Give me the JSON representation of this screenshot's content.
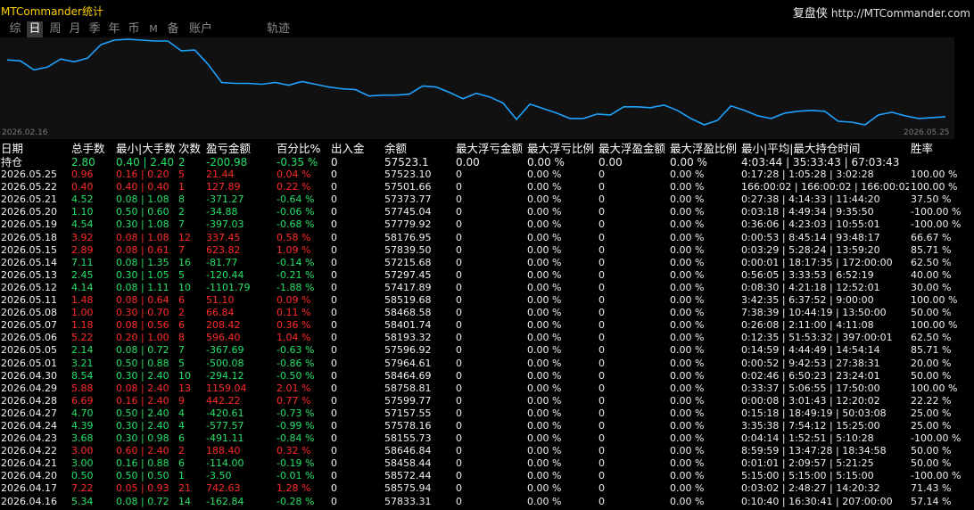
{
  "title": "MTCommander统计",
  "brand": {
    "name": "复盘侠",
    "url": "http://MTCommander.com"
  },
  "tabs": [
    {
      "label": "综",
      "active": false
    },
    {
      "label": "日",
      "active": true
    },
    {
      "label": "周",
      "active": false
    },
    {
      "label": "月",
      "active": false
    },
    {
      "label": "季",
      "active": false
    },
    {
      "label": "年",
      "active": false
    },
    {
      "label": "币",
      "active": false
    },
    {
      "label": "M",
      "active": false
    },
    {
      "label": "备",
      "active": false
    },
    {
      "label": "账户",
      "active": false
    },
    {
      "label": "轨迹",
      "active": false
    }
  ],
  "colors": {
    "chart_line": "#1ea2ff",
    "chart_bg": "#111111",
    "positive": "#27e06a",
    "negative": "#ff2a2a",
    "title": "#ffd200"
  },
  "chart_data": {
    "type": "line",
    "x_start": "2026.02.16",
    "x_end": "2026.05.25",
    "values": [
      58090,
      58080,
      57980,
      58010,
      58100,
      58070,
      58110,
      58260,
      58310,
      58320,
      58310,
      58300,
      58300,
      58190,
      58200,
      58040,
      57840,
      57830,
      57830,
      57820,
      57840,
      57810,
      57850,
      57820,
      57790,
      57770,
      57760,
      57690,
      57700,
      57700,
      57710,
      57800,
      57790,
      57730,
      57660,
      57720,
      57680,
      57610,
      57430,
      57600,
      57550,
      57500,
      57440,
      57440,
      57490,
      57480,
      57570,
      57570,
      57560,
      57590,
      57530,
      57440,
      57370,
      57420,
      57580,
      57530,
      57470,
      57440,
      57500,
      57520,
      57530,
      57520,
      57410,
      57400,
      57370,
      57480,
      57510,
      57470,
      57440,
      57450,
      57460
    ]
  },
  "table": {
    "headers": [
      "日期",
      "总手数",
      "最小|大手数",
      "次数",
      "盈亏金额",
      "百分比%",
      "出入金",
      "余额",
      "最大浮亏金额",
      "最大浮亏比例",
      "最大浮盈金额",
      "最大浮盈比例",
      "最小|平均|最大持仓时间",
      "胜率"
    ],
    "holding": {
      "label": "持仓",
      "lots": "2.80",
      "minmax": "0.40 | 2.40",
      "count": "2",
      "pnl": "-200.98",
      "pct": "-0.35 %",
      "io": "0",
      "balance": "57523.1",
      "mfl_amt": "0.00",
      "mfl_pct": "0.00 %",
      "mfp_amt": "0.00",
      "mfp_pct": "0.00 %",
      "hold": "4:03:44 | 35:33:43 | 67:03:43",
      "win": ""
    },
    "rows": [
      {
        "d": "2026.05.25",
        "l": "0.96",
        "m": "0.16 | 0.20",
        "n": "5",
        "p": "21.44",
        "pc": "0.04 %",
        "io": "0",
        "b": "57523.10",
        "a1": "0",
        "a2": "0.00 %",
        "a3": "0",
        "a4": "0.00 %",
        "h": "0:17:28 | 1:05:28 | 3:02:28",
        "w": "100.00 %"
      },
      {
        "d": "2026.05.22",
        "l": "0.40",
        "m": "0.40 | 0.40",
        "n": "1",
        "p": "127.89",
        "pc": "0.22 %",
        "io": "0",
        "b": "57501.66",
        "a1": "0",
        "a2": "0.00 %",
        "a3": "0",
        "a4": "0.00 %",
        "h": "166:00:02 | 166:00:02 | 166:00:02",
        "w": "100.00 %"
      },
      {
        "d": "2026.05.21",
        "l": "4.52",
        "m": "0.08 | 1.08",
        "n": "8",
        "p": "-371.27",
        "pc": "-0.64 %",
        "io": "0",
        "b": "57373.77",
        "a1": "0",
        "a2": "0.00 %",
        "a3": "0",
        "a4": "0.00 %",
        "h": "0:27:38 | 4:14:33 | 11:44:20",
        "w": "37.50 %"
      },
      {
        "d": "2026.05.20",
        "l": "1.10",
        "m": "0.50 | 0.60",
        "n": "2",
        "p": "-34.88",
        "pc": "-0.06 %",
        "io": "0",
        "b": "57745.04",
        "a1": "0",
        "a2": "0.00 %",
        "a3": "0",
        "a4": "0.00 %",
        "h": "0:03:18 | 4:49:34 | 9:35:50",
        "w": "-100.00 %"
      },
      {
        "d": "2026.05.19",
        "l": "4.54",
        "m": "0.30 | 1.08",
        "n": "7",
        "p": "-397.03",
        "pc": "-0.68 %",
        "io": "0",
        "b": "57779.92",
        "a1": "0",
        "a2": "0.00 %",
        "a3": "0",
        "a4": "0.00 %",
        "h": "0:36:06 | 4:23:03 | 10:55:01",
        "w": "-100.00 %"
      },
      {
        "d": "2026.05.18",
        "l": "3.92",
        "m": "0.08 | 1.08",
        "n": "12",
        "p": "337.45",
        "pc": "0.58 %",
        "io": "0",
        "b": "58176.95",
        "a1": "0",
        "a2": "0.00 %",
        "a3": "0",
        "a4": "0.00 %",
        "h": "0:00:53 | 8:45:14 | 93:48:17",
        "w": "66.67 %"
      },
      {
        "d": "2026.05.15",
        "l": "2.89",
        "m": "0.08 | 0.61",
        "n": "7",
        "p": "623.82",
        "pc": "1.09 %",
        "io": "0",
        "b": "57839.50",
        "a1": "0",
        "a2": "0.00 %",
        "a3": "0",
        "a4": "0.00 %",
        "h": "0:03:29 | 5:28:24 | 13:59:20",
        "w": "85.71 %"
      },
      {
        "d": "2026.05.14",
        "l": "7.11",
        "m": "0.08 | 1.35",
        "n": "16",
        "p": "-81.77",
        "pc": "-0.14 %",
        "io": "0",
        "b": "57215.68",
        "a1": "0",
        "a2": "0.00 %",
        "a3": "0",
        "a4": "0.00 %",
        "h": "0:00:01 | 18:17:35 | 172:00:00",
        "w": "62.50 %"
      },
      {
        "d": "2026.05.13",
        "l": "2.45",
        "m": "0.30 | 1.05",
        "n": "5",
        "p": "-120.44",
        "pc": "-0.21 %",
        "io": "0",
        "b": "57297.45",
        "a1": "0",
        "a2": "0.00 %",
        "a3": "0",
        "a4": "0.00 %",
        "h": "0:56:05 | 3:33:53 | 6:52:19",
        "w": "40.00 %"
      },
      {
        "d": "2026.05.12",
        "l": "4.14",
        "m": "0.08 | 1.11",
        "n": "10",
        "p": "-1101.79",
        "pc": "-1.88 %",
        "io": "0",
        "b": "57417.89",
        "a1": "0",
        "a2": "0.00 %",
        "a3": "0",
        "a4": "0.00 %",
        "h": "0:08:30 | 4:21:18 | 12:52:01",
        "w": "30.00 %"
      },
      {
        "d": "2026.05.11",
        "l": "1.48",
        "m": "0.08 | 0.64",
        "n": "6",
        "p": "51.10",
        "pc": "0.09 %",
        "io": "0",
        "b": "58519.68",
        "a1": "0",
        "a2": "0.00 %",
        "a3": "0",
        "a4": "0.00 %",
        "h": "3:42:35 | 6:37:52 | 9:00:00",
        "w": "100.00 %"
      },
      {
        "d": "2026.05.08",
        "l": "1.00",
        "m": "0.30 | 0.70",
        "n": "2",
        "p": "66.84",
        "pc": "0.11 %",
        "io": "0",
        "b": "58468.58",
        "a1": "0",
        "a2": "0.00 %",
        "a3": "0",
        "a4": "0.00 %",
        "h": "7:38:39 | 10:44:19 | 13:50:00",
        "w": "50.00 %"
      },
      {
        "d": "2026.05.07",
        "l": "1.18",
        "m": "0.08 | 0.56",
        "n": "6",
        "p": "208.42",
        "pc": "0.36 %",
        "io": "0",
        "b": "58401.74",
        "a1": "0",
        "a2": "0.00 %",
        "a3": "0",
        "a4": "0.00 %",
        "h": "0:26:08 | 2:11:00 | 4:11:08",
        "w": "100.00 %"
      },
      {
        "d": "2026.05.06",
        "l": "5.22",
        "m": "0.20 | 1.00",
        "n": "8",
        "p": "596.40",
        "pc": "1.04 %",
        "io": "0",
        "b": "58193.32",
        "a1": "0",
        "a2": "0.00 %",
        "a3": "0",
        "a4": "0.00 %",
        "h": "0:12:35 | 51:53:32 | 397:00:01",
        "w": "62.50 %"
      },
      {
        "d": "2026.05.05",
        "l": "2.14",
        "m": "0.08 | 0.72",
        "n": "7",
        "p": "-367.69",
        "pc": "-0.63 %",
        "io": "0",
        "b": "57596.92",
        "a1": "0",
        "a2": "0.00 %",
        "a3": "0",
        "a4": "0.00 %",
        "h": "0:14:59 | 4:44:49 | 14:54:14",
        "w": "85.71 %"
      },
      {
        "d": "2026.05.01",
        "l": "3.21",
        "m": "0.50 | 0.88",
        "n": "5",
        "p": "-500.08",
        "pc": "-0.86 %",
        "io": "0",
        "b": "57964.61",
        "a1": "0",
        "a2": "0.00 %",
        "a3": "0",
        "a4": "0.00 %",
        "h": "0:00:52 | 9:42:53 | 27:38:31",
        "w": "20.00 %"
      },
      {
        "d": "2026.04.30",
        "l": "8.54",
        "m": "0.30 | 2.40",
        "n": "10",
        "p": "-294.12",
        "pc": "-0.50 %",
        "io": "0",
        "b": "58464.69",
        "a1": "0",
        "a2": "0.00 %",
        "a3": "0",
        "a4": "0.00 %",
        "h": "0:02:46 | 6:50:23 | 23:24:01",
        "w": "50.00 %"
      },
      {
        "d": "2026.04.29",
        "l": "5.88",
        "m": "0.08 | 2.40",
        "n": "13",
        "p": "1159.04",
        "pc": "2.01 %",
        "io": "0",
        "b": "58758.81",
        "a1": "0",
        "a2": "0.00 %",
        "a3": "0",
        "a4": "0.00 %",
        "h": "0:33:37 | 5:06:55 | 17:50:00",
        "w": "100.00 %"
      },
      {
        "d": "2026.04.28",
        "l": "6.69",
        "m": "0.16 | 2.40",
        "n": "9",
        "p": "442.22",
        "pc": "0.77 %",
        "io": "0",
        "b": "57599.77",
        "a1": "0",
        "a2": "0.00 %",
        "a3": "0",
        "a4": "0.00 %",
        "h": "0:00:08 | 3:01:43 | 12:20:02",
        "w": "22.22 %"
      },
      {
        "d": "2026.04.27",
        "l": "4.70",
        "m": "0.50 | 2.40",
        "n": "4",
        "p": "-420.61",
        "pc": "-0.73 %",
        "io": "0",
        "b": "57157.55",
        "a1": "0",
        "a2": "0.00 %",
        "a3": "0",
        "a4": "0.00 %",
        "h": "0:15:18 | 18:49:19 | 50:03:08",
        "w": "25.00 %"
      },
      {
        "d": "2026.04.24",
        "l": "4.39",
        "m": "0.30 | 2.40",
        "n": "4",
        "p": "-577.57",
        "pc": "-0.99 %",
        "io": "0",
        "b": "57578.16",
        "a1": "0",
        "a2": "0.00 %",
        "a3": "0",
        "a4": "0.00 %",
        "h": "3:35:38 | 7:54:12 | 15:25:00",
        "w": "25.00 %"
      },
      {
        "d": "2026.04.23",
        "l": "3.68",
        "m": "0.30 | 0.98",
        "n": "6",
        "p": "-491.11",
        "pc": "-0.84 %",
        "io": "0",
        "b": "58155.73",
        "a1": "0",
        "a2": "0.00 %",
        "a3": "0",
        "a4": "0.00 %",
        "h": "0:04:14 | 1:52:51 | 5:10:28",
        "w": "-100.00 %"
      },
      {
        "d": "2026.04.22",
        "l": "3.00",
        "m": "0.60 | 2.40",
        "n": "2",
        "p": "188.40",
        "pc": "0.32 %",
        "io": "0",
        "b": "58646.84",
        "a1": "0",
        "a2": "0.00 %",
        "a3": "0",
        "a4": "0.00 %",
        "h": "8:59:59 | 13:47:28 | 18:34:58",
        "w": "50.00 %"
      },
      {
        "d": "2026.04.21",
        "l": "3.00",
        "m": "0.16 | 0.88",
        "n": "6",
        "p": "-114.00",
        "pc": "-0.19 %",
        "io": "0",
        "b": "58458.44",
        "a1": "0",
        "a2": "0.00 %",
        "a3": "0",
        "a4": "0.00 %",
        "h": "0:01:01 | 2:09:57 | 5:21:25",
        "w": "50.00 %"
      },
      {
        "d": "2026.04.20",
        "l": "0.50",
        "m": "0.50 | 0.50",
        "n": "1",
        "p": "-3.50",
        "pc": "-0.01 %",
        "io": "0",
        "b": "58572.44",
        "a1": "0",
        "a2": "0.00 %",
        "a3": "0",
        "a4": "0.00 %",
        "h": "5:15:00 | 5:15:00 | 5:15:00",
        "w": "-100.00 %"
      },
      {
        "d": "2026.04.17",
        "l": "7.22",
        "m": "0.05 | 0.93",
        "n": "21",
        "p": "742.63",
        "pc": "1.28 %",
        "io": "0",
        "b": "58575.94",
        "a1": "0",
        "a2": "0.00 %",
        "a3": "0",
        "a4": "0.00 %",
        "h": "0:03:02 | 2:48:27 | 14:20:32",
        "w": "71.43 %"
      },
      {
        "d": "2026.04.16",
        "l": "5.34",
        "m": "0.08 | 0.72",
        "n": "14",
        "p": "-162.84",
        "pc": "-0.28 %",
        "io": "0",
        "b": "57833.31",
        "a1": "0",
        "a2": "0.00 %",
        "a3": "0",
        "a4": "0.00 %",
        "h": "0:10:40 | 16:30:41 | 207:00:00",
        "w": "57.14 %"
      }
    ]
  }
}
